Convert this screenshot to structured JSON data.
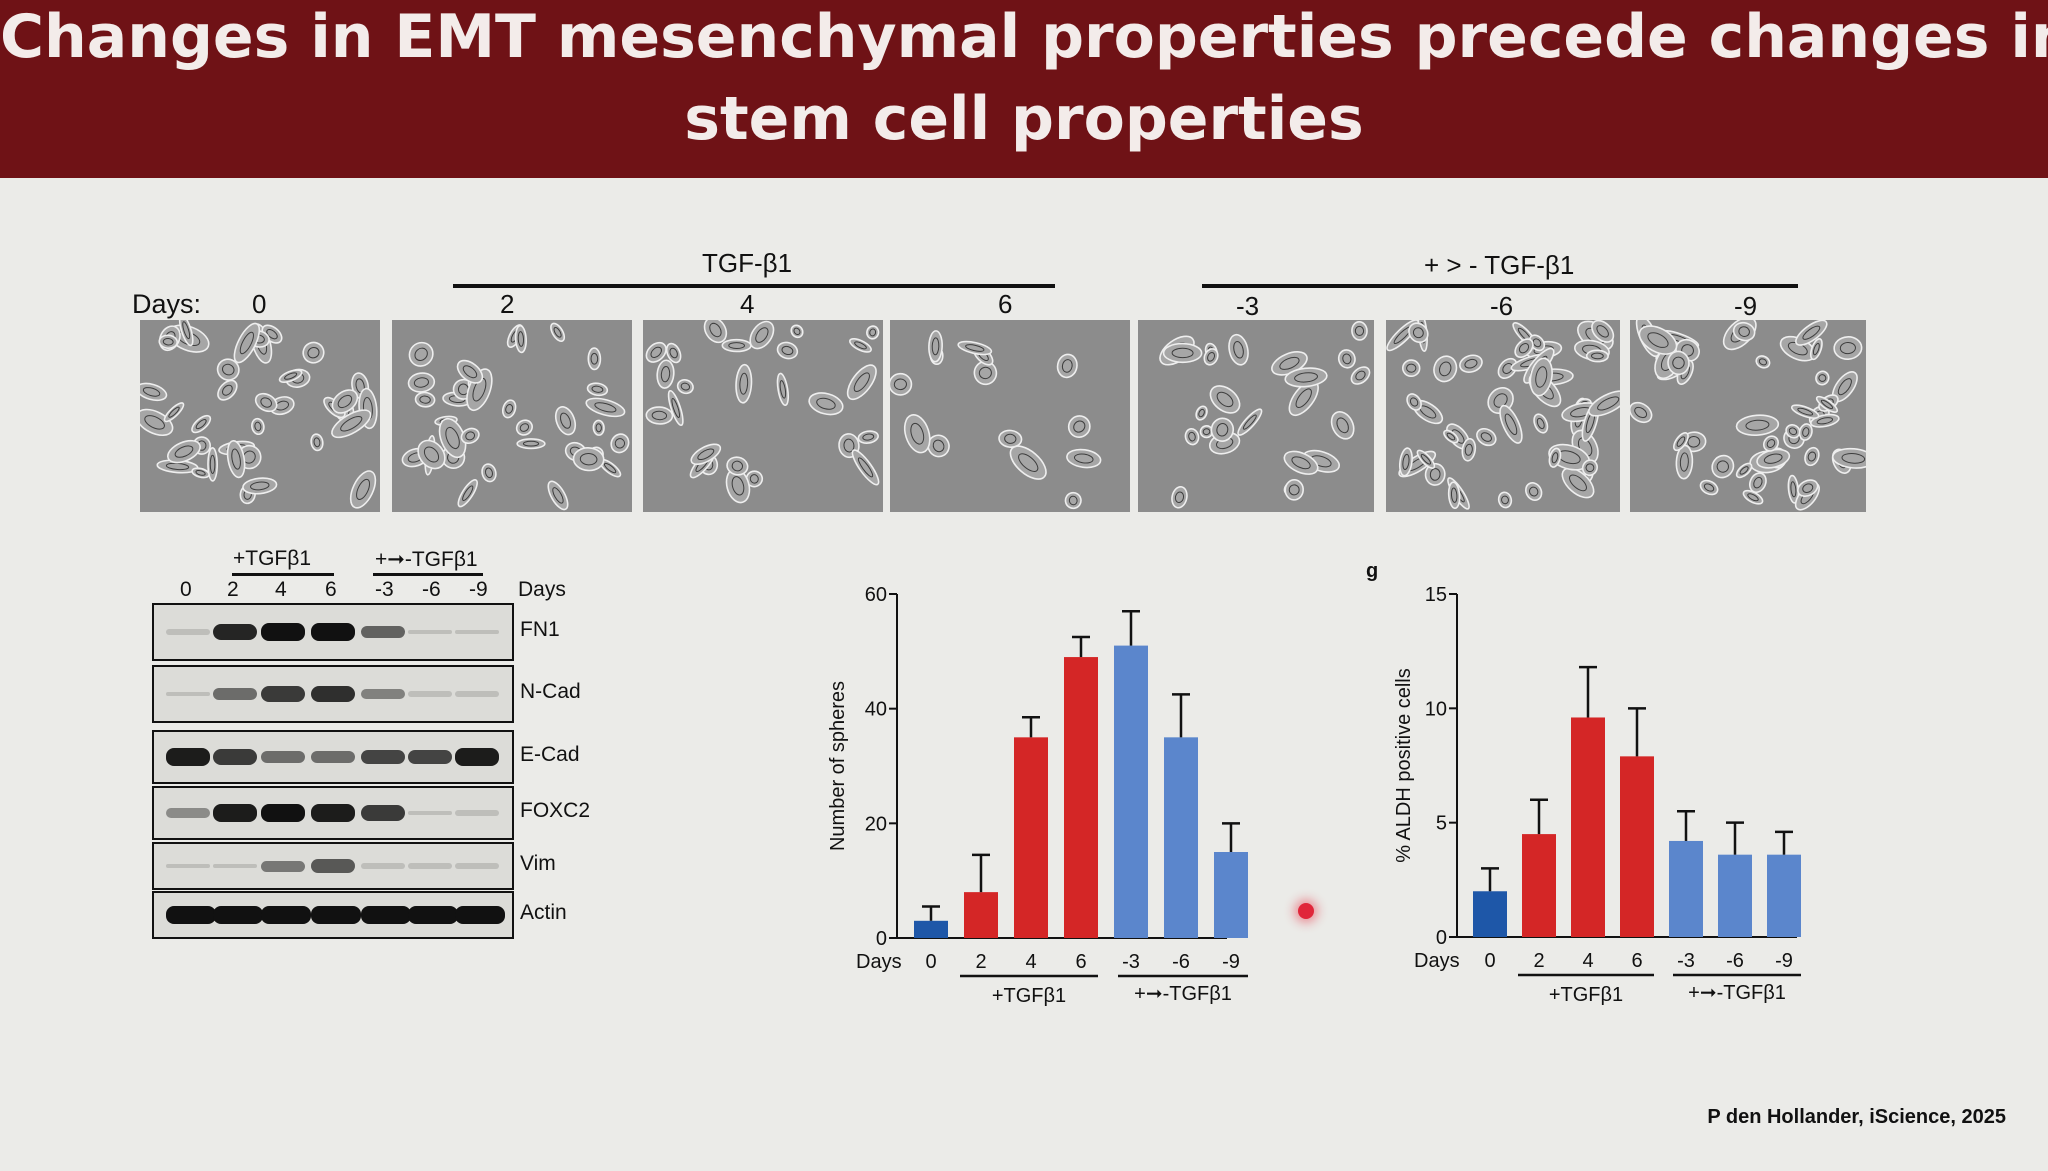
{
  "header": {
    "title_line1": "Changes in EMT mesenchymal properties precede changes in",
    "title_line2": "stem cell properties"
  },
  "colors": {
    "header_bg": "#6f1216",
    "red": "#d42626",
    "blue": "#5b86cc",
    "dark_blue": "#1e57a8"
  },
  "micrographs": {
    "days_label": "Days:",
    "group1": "TGF-β1",
    "group2": "+ > - TGF-β1",
    "days": [
      "0",
      "2",
      "4",
      "6",
      "-3",
      "-6",
      "-9"
    ]
  },
  "blot": {
    "group1": "+TGFβ1",
    "group2": "+➞-TGFβ1",
    "days_label": "Days",
    "lanes": [
      "0",
      "2",
      "4",
      "6",
      "-3",
      "-6",
      "-9"
    ],
    "rows": [
      {
        "name": "FN1",
        "intensity": [
          0.15,
          0.9,
          1.0,
          1.0,
          0.6,
          0.05,
          0.03
        ]
      },
      {
        "name": "N-Cad",
        "intensity": [
          0.05,
          0.55,
          0.8,
          0.85,
          0.45,
          0.15,
          0.15
        ]
      },
      {
        "name": "E-Cad",
        "intensity": [
          0.95,
          0.8,
          0.55,
          0.55,
          0.75,
          0.75,
          0.95
        ]
      },
      {
        "name": "FOXC2",
        "intensity": [
          0.4,
          0.95,
          1.0,
          0.95,
          0.8,
          0.05,
          0.1
        ]
      },
      {
        "name": "Vim",
        "intensity": [
          0.02,
          0.05,
          0.5,
          0.65,
          0.1,
          0.1,
          0.1
        ]
      },
      {
        "name": "Actin",
        "intensity": [
          1.0,
          1.0,
          1.0,
          1.0,
          1.0,
          1.0,
          1.0
        ]
      }
    ]
  },
  "chart_data": [
    {
      "type": "bar",
      "title": "",
      "xlabel": "Days",
      "ylabel": "Number of spheres",
      "categories": [
        "0",
        "2",
        "4",
        "6",
        "-3",
        "-6",
        "-9"
      ],
      "values": [
        3,
        8,
        35,
        49,
        51,
        35,
        15
      ],
      "errors": [
        2.5,
        6.5,
        3.5,
        3.5,
        6,
        7.5,
        5
      ],
      "bar_colors": [
        "#1e57a8",
        "#d42626",
        "#d42626",
        "#d42626",
        "#5b86cc",
        "#5b86cc",
        "#5b86cc"
      ],
      "ylim": [
        0,
        60
      ],
      "yticks": [
        "0",
        "20",
        "40",
        "60"
      ],
      "groups": [
        "+TGFβ1",
        "+➞-TGFβ1"
      ]
    },
    {
      "type": "bar",
      "panel_label": "g",
      "xlabel": "Days",
      "ylabel": "% ALDH positive cells",
      "categories": [
        "0",
        "2",
        "4",
        "6",
        "-3",
        "-6",
        "-9"
      ],
      "values": [
        2,
        4.5,
        9.6,
        7.9,
        4.2,
        3.6,
        3.6
      ],
      "errors": [
        1,
        1.5,
        2.2,
        2.1,
        1.3,
        1.4,
        1
      ],
      "bar_colors": [
        "#1e57a8",
        "#d42626",
        "#d42626",
        "#d42626",
        "#5b86cc",
        "#5b86cc",
        "#5b86cc"
      ],
      "ylim": [
        0,
        15
      ],
      "yticks": [
        "0",
        "5",
        "10",
        "15"
      ],
      "groups": [
        "+TGFβ1",
        "+➞-TGFβ1"
      ]
    }
  ],
  "citation": "P den Hollander, iScience, 2025"
}
